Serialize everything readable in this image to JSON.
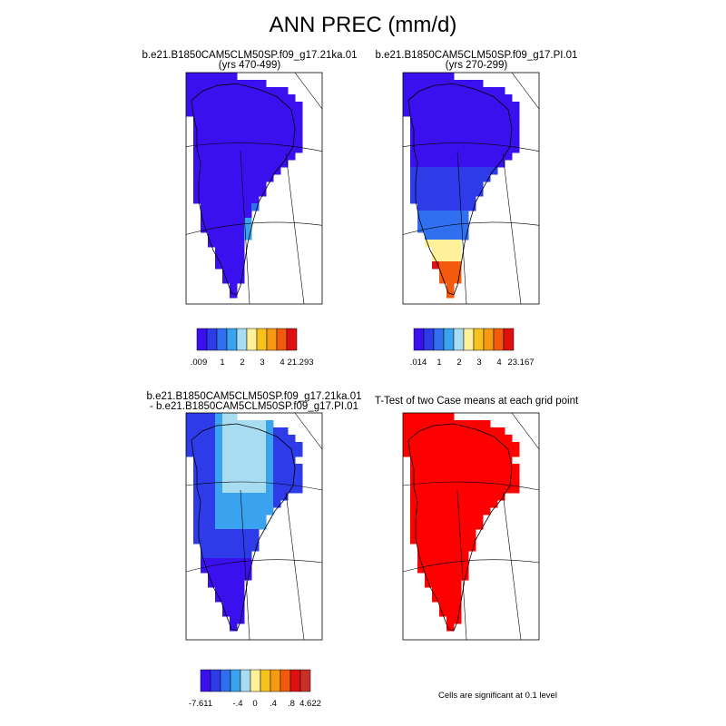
{
  "title": "ANN PREC (mm/d)",
  "colors": {
    "scale": [
      "#3a10ee",
      "#2d3be8",
      "#2f6ff0",
      "#3aa3f0",
      "#a8dcf0",
      "#fff09a",
      "#f8c21c",
      "#f59a12",
      "#f35a0e",
      "#e01010",
      "#c8302a"
    ],
    "significant": "#ff0000",
    "coastline": "#000000"
  },
  "panels": [
    {
      "id": "top-left",
      "title_line1": "b.e21.B1850CAM5CLM50SP.f09_g17.21ka.01",
      "title_line2": "(yrs 470-499)",
      "colorbar": {
        "labels": [
          ".009",
          "1",
          "2",
          "3",
          "4",
          "21.293"
        ]
      },
      "fill_scheme": "case1"
    },
    {
      "id": "top-right",
      "title_line1": "b.e21.B1850CAM5CLM50SP.f09_g17.PI.01",
      "title_line2": "(yrs 270-299)",
      "colorbar": {
        "labels": [
          ".014",
          "1",
          "2",
          "3",
          "4",
          "23.167"
        ]
      },
      "fill_scheme": "case2"
    },
    {
      "id": "bottom-left",
      "title_line1": "b.e21.B1850CAM5CLM50SP.f09_g17.21ka.01",
      "title_line2": "- b.e21.B1850CAM5CLM50SP.f09_g17.PI.01",
      "colorbar": {
        "labels": [
          "-7.611",
          "-.4",
          "0",
          ".4",
          ".8",
          "4.622"
        ]
      },
      "fill_scheme": "diff"
    },
    {
      "id": "bottom-right",
      "title_line1": "T-Test of two Case means at each grid point",
      "title_line2": "",
      "footnote": "Cells are significant at 0.1 level",
      "fill_scheme": "ttest"
    }
  ]
}
